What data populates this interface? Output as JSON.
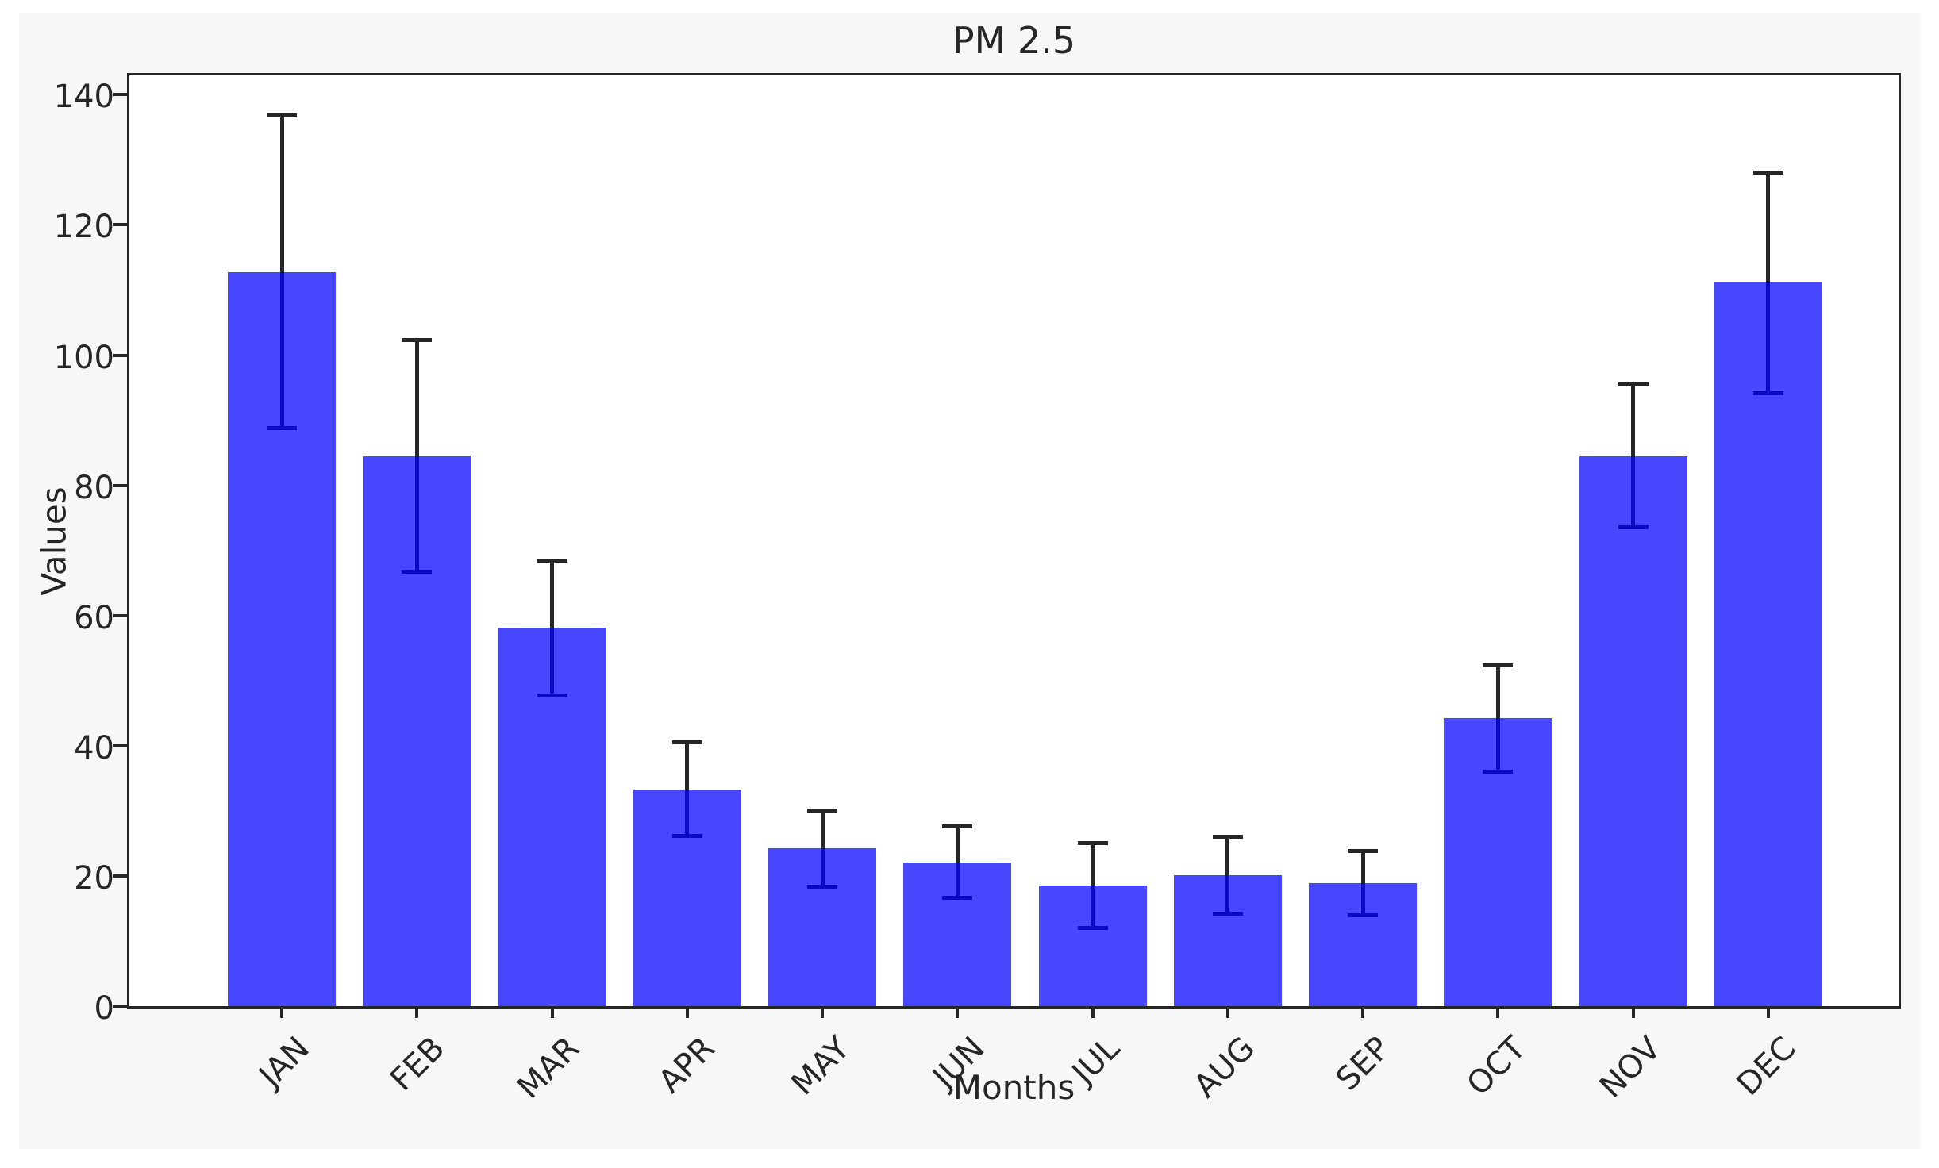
{
  "chart_data": {
    "type": "bar",
    "title": "PM 2.5",
    "xlabel": "Months",
    "ylabel": "Values",
    "categories": [
      "JAN",
      "FEB",
      "MAR",
      "APR",
      "MAY",
      "JUN",
      "JUL",
      "AUG",
      "SEP",
      "OCT",
      "NOV",
      "DEC"
    ],
    "values": [
      112.8,
      84.5,
      58.1,
      33.3,
      24.2,
      22.1,
      18.5,
      20.1,
      18.9,
      44.2,
      84.5,
      111.1
    ],
    "errors": [
      24.0,
      17.8,
      10.4,
      7.2,
      5.9,
      5.5,
      6.5,
      5.9,
      4.9,
      8.2,
      11.0,
      17.0
    ],
    "error_style": "symmetric, capped",
    "y_ticks": [
      0,
      20,
      40,
      60,
      80,
      100,
      120,
      140
    ],
    "ylim": [
      0,
      143.7
    ],
    "grid": false,
    "legend": null,
    "colors": {
      "bar_fill": "rgba(0,0,255,0.72)",
      "bar_fill_hex_over_white": "#4d4dff",
      "error_bar": "#262626",
      "figure_background": "#f7f7f7",
      "plot_background": "#ffffff",
      "spine_and_text": "#262626"
    }
  }
}
